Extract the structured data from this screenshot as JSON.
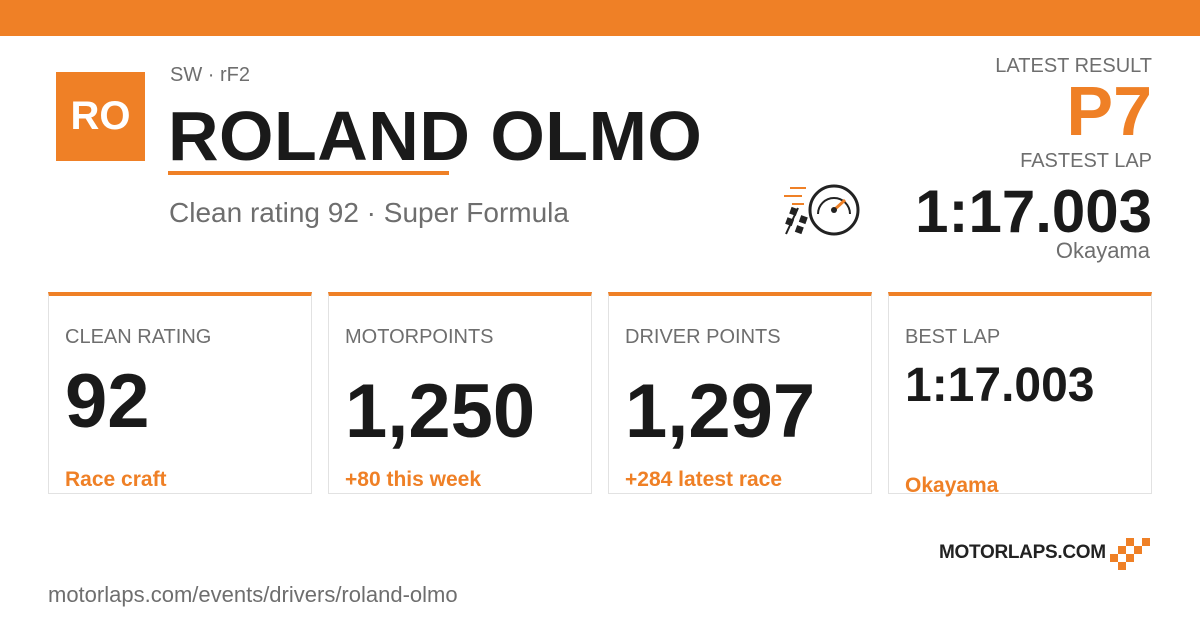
{
  "header": {
    "initials": "RO",
    "platform": "SW · rF2",
    "name": "ROLAND OLMO",
    "subtitle": "Clean rating 92 · Super Formula"
  },
  "latest": {
    "result_label": "LATEST RESULT",
    "result": "P7",
    "fastest_lap_label": "FASTEST LAP",
    "fastest_lap": "1:17.003",
    "track": "Okayama"
  },
  "cards": [
    {
      "label": "CLEAN RATING",
      "value": "92",
      "note": "Race craft"
    },
    {
      "label": "MOTORPOINTS",
      "value": "1,250",
      "note": "+80 this week"
    },
    {
      "label": "DRIVER POINTS",
      "value": "1,297",
      "note": "+284 latest race"
    },
    {
      "label": "BEST LAP",
      "value": "1:17.003",
      "note": "Okayama"
    }
  ],
  "footer": {
    "logo": "MOTORLAPS.COM",
    "url": "motorlaps.com/events/drivers/roland-olmo"
  }
}
